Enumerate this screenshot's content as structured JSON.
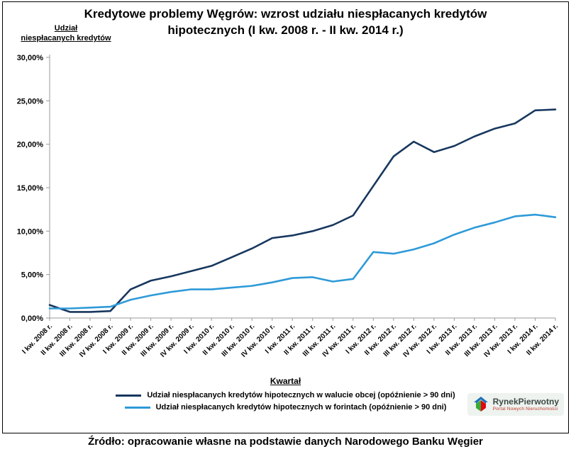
{
  "title": "Kredytowe problemy Węgrów: wzrost udziału niespłacanych kredytów hipotecznych (I kw. 2008 r. - II kw. 2014 r.)",
  "y_axis_label": "Udział\nniespłacanych kredytów",
  "x_axis_label": "Kwartał",
  "source": "Źródło: opracowanie własne na podstawie danych Narodowego Banku Węgier",
  "logo": {
    "name": "RynekPierwotny",
    "subtitle": "Portal Nowych Nieruchomości"
  },
  "chart_data": {
    "type": "line",
    "title": "Kredytowe problemy Węgrów: wzrost udziału niespłacanych kredytów hipotecznych (I kw. 2008 r. - II kw. 2014 r.)",
    "xlabel": "Kwartał",
    "ylabel": "Udział niespłacanych kredytów",
    "ylim": [
      0,
      30
    ],
    "ytick_step": 5,
    "ytick_labels": [
      "0,00%",
      "5,00%",
      "10,00%",
      "15,00%",
      "20,00%",
      "25,00%",
      "30,00%"
    ],
    "grid": false,
    "legend_position": "bottom",
    "categories": [
      "I kw. 2008 r.",
      "II kw. 2008 r.",
      "III kw. 2008 r.",
      "IV kw. 2008 r.",
      "I kw. 2009 r.",
      "II kw. 2009 r.",
      "III kw. 2009 r.",
      "IV kw. 2009 r.",
      "I kw. 2010 r.",
      "II kw. 2010 r.",
      "III kw. 2010 r.",
      "IV kw. 2010 r.",
      "I kw. 2011 r.",
      "II kw. 2011 r.",
      "III kw. 2011 r.",
      "IV kw. 2011 r.",
      "I kw. 2012 r.",
      "II kw. 2012 r.",
      "III kw. 2012 r.",
      "IV kw. 2012 r.",
      "I kw. 2013 r.",
      "II kw. 2013 r.",
      "III kw. 2013 r.",
      "IV kw. 2013 r.",
      "I kw. 2014 r.",
      "II kw. 2014 r."
    ],
    "series": [
      {
        "name": "Udział niespłacanych kredytów hipotecznych w walucie obcej (opóźnienie > 90 dni)",
        "color": "#17375E",
        "values": [
          1.5,
          0.7,
          0.7,
          0.8,
          3.3,
          4.3,
          4.8,
          5.4,
          6.0,
          7.0,
          8.0,
          9.2,
          9.5,
          10.0,
          10.7,
          11.8,
          15.2,
          18.6,
          20.3,
          19.1,
          19.8,
          20.9,
          21.8,
          22.4,
          23.9,
          24.0
        ]
      },
      {
        "name": "Udział niespłacanych kredytów hipotecznych w forintach (opóźnienie > 90 dni)",
        "color": "#2E9AD8",
        "values": [
          1.1,
          1.1,
          1.2,
          1.3,
          2.1,
          2.6,
          3.0,
          3.3,
          3.3,
          3.5,
          3.7,
          4.1,
          4.6,
          4.7,
          4.2,
          4.5,
          7.6,
          7.4,
          7.9,
          8.6,
          9.6,
          10.4,
          11.0,
          11.7,
          11.9,
          11.6
        ]
      }
    ]
  }
}
